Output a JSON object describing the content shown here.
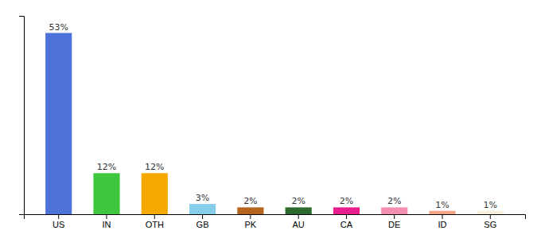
{
  "chart_data": {
    "type": "bar",
    "categories": [
      "US",
      "IN",
      "OTH",
      "GB",
      "PK",
      "AU",
      "CA",
      "DE",
      "ID",
      "SG"
    ],
    "values": [
      53,
      12,
      12,
      3,
      2,
      2,
      2,
      2,
      1,
      1
    ],
    "value_labels": [
      "53%",
      "12%",
      "12%",
      "3%",
      "2%",
      "2%",
      "2%",
      "2%",
      "1%",
      "1%"
    ],
    "colors": [
      "#4d72d9",
      "#3ec63e",
      "#f5a800",
      "#87ceeb",
      "#b5651d",
      "#2d6a2d",
      "#e91e8c",
      "#f48fb1",
      "#f4a58a",
      "#f5f0dc"
    ],
    "ylim": [
      0,
      58
    ],
    "data_labels": true,
    "tick_labels": "x",
    "grid": false
  }
}
